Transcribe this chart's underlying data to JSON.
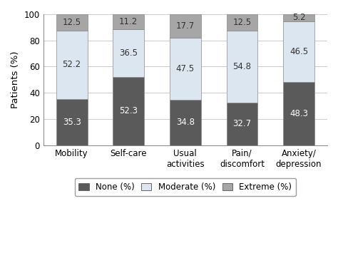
{
  "categories": [
    "Mobility",
    "Self-care",
    "Usual\nactivities",
    "Pain/\ndiscomfort",
    "Anxiety/\ndepression"
  ],
  "none": [
    35.3,
    52.3,
    34.8,
    32.7,
    48.3
  ],
  "moderate": [
    52.2,
    36.5,
    47.5,
    54.8,
    46.5
  ],
  "extreme": [
    12.5,
    11.2,
    17.7,
    12.5,
    5.2
  ],
  "none_color": "#5a5a5a",
  "moderate_color": "#dce6f1",
  "extreme_color": "#a6a6a6",
  "none_label": "None (%)",
  "moderate_label": "Moderate (%)",
  "extreme_label": "Extreme (%)",
  "ylabel": "Patients (%)",
  "ylim": [
    0,
    100
  ],
  "yticks": [
    0,
    20,
    40,
    60,
    80,
    100
  ],
  "bar_width": 0.55,
  "none_text_color": "white",
  "moderate_text_color": "#333333",
  "extreme_text_color": "#333333",
  "fontsize_labels": 8.5,
  "fontsize_values": 8.5,
  "fontsize_legend": 8.5,
  "fontsize_ylabel": 9.5,
  "edge_color": "#888888",
  "edge_linewidth": 0.5
}
